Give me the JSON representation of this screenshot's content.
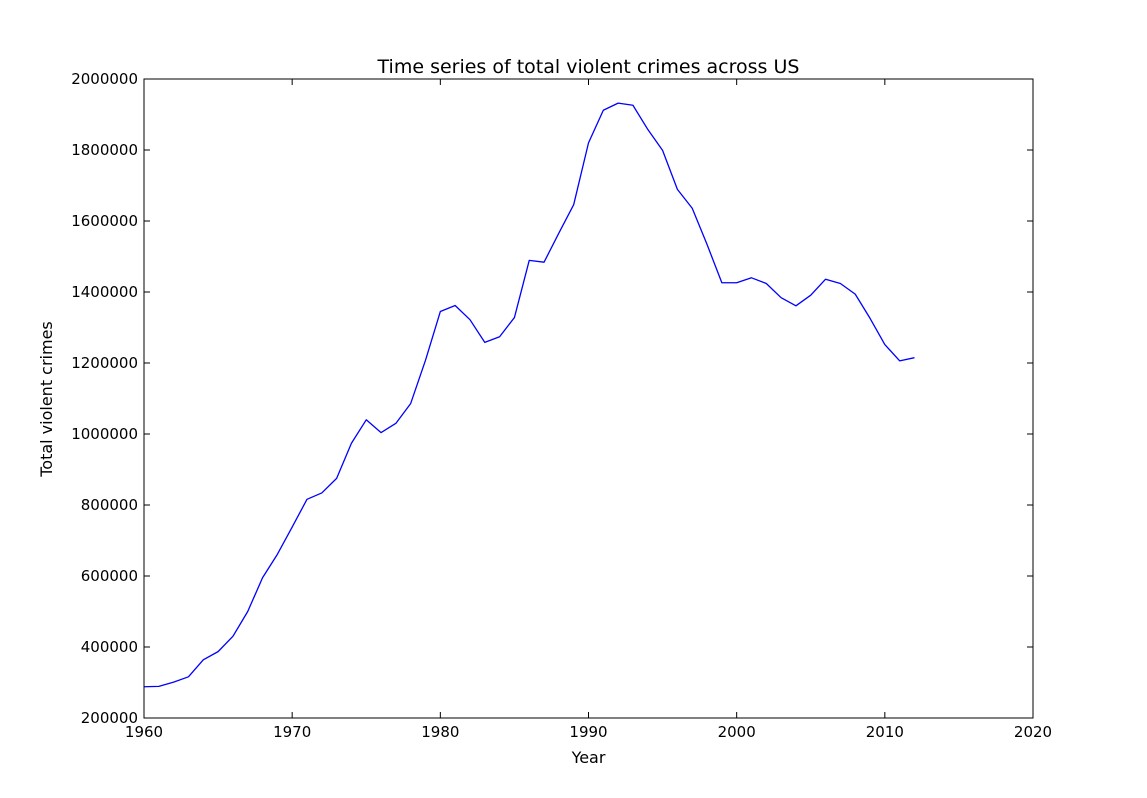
{
  "chart_data": {
    "type": "line",
    "title": "Time series of total violent crimes across US",
    "xlabel": "Year",
    "ylabel": "Total violent crimes",
    "xlim": [
      1960,
      2020
    ],
    "ylim": [
      200000,
      2000000
    ],
    "xticks": [
      1960,
      1970,
      1980,
      1990,
      2000,
      2010,
      2020
    ],
    "yticks": [
      200000,
      400000,
      600000,
      800000,
      1000000,
      1200000,
      1400000,
      1600000,
      1800000,
      2000000
    ],
    "grid": false,
    "color": "#0000ff",
    "series": [
      {
        "name": "Total violent crimes",
        "x": [
          1960,
          1961,
          1962,
          1963,
          1964,
          1965,
          1966,
          1967,
          1968,
          1969,
          1970,
          1971,
          1972,
          1973,
          1974,
          1975,
          1976,
          1977,
          1978,
          1979,
          1980,
          1981,
          1982,
          1983,
          1984,
          1985,
          1986,
          1987,
          1988,
          1989,
          1990,
          1991,
          1992,
          1993,
          1994,
          1995,
          1996,
          1997,
          1998,
          1999,
          2000,
          2001,
          2002,
          2003,
          2004,
          2005,
          2006,
          2007,
          2008,
          2009,
          2010,
          2011,
          2012
        ],
        "values": [
          288000,
          289000,
          301000,
          316000,
          364000,
          387000,
          430000,
          500000,
          595000,
          661000,
          738000,
          816000,
          834000,
          875000,
          974000,
          1040000,
          1004000,
          1030000,
          1086000,
          1208000,
          1345000,
          1362000,
          1322000,
          1258000,
          1274000,
          1328000,
          1489000,
          1484000,
          1566000,
          1646000,
          1820000,
          1912000,
          1932000,
          1926000,
          1858000,
          1799000,
          1689000,
          1636000,
          1534000,
          1426000,
          1426000,
          1440000,
          1424000,
          1384000,
          1361000,
          1391000,
          1436000,
          1424000,
          1394000,
          1326000,
          1252000,
          1206000,
          1215000
        ]
      }
    ]
  }
}
